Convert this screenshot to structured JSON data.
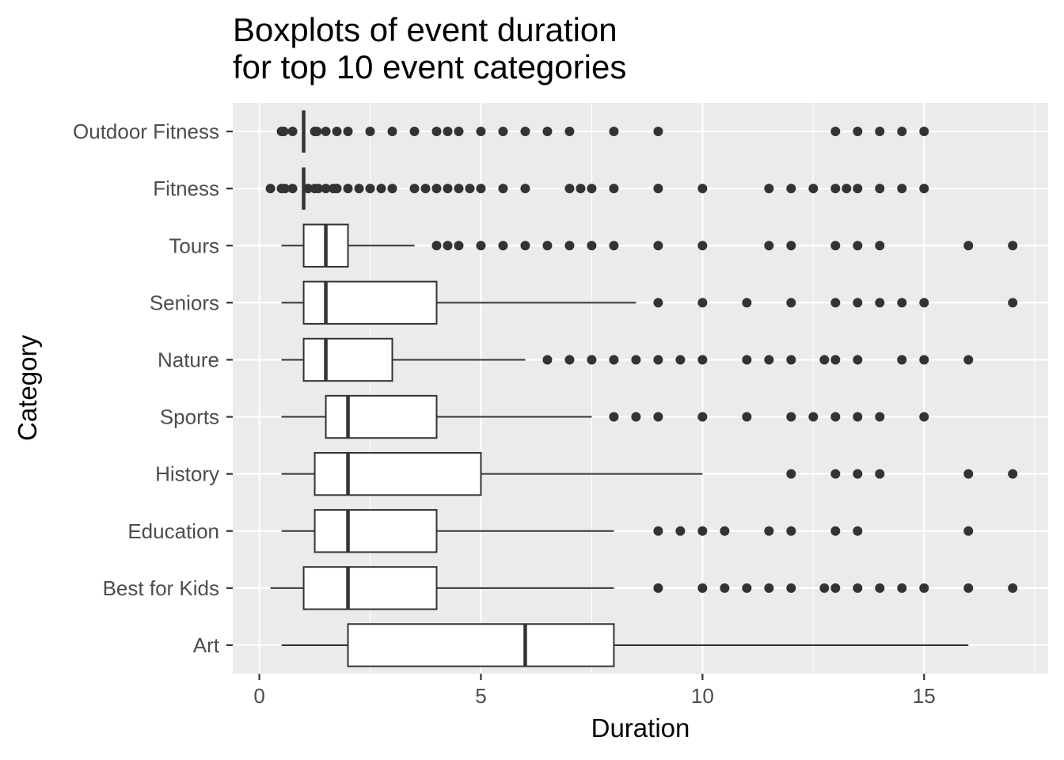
{
  "chart_data": {
    "type": "boxplot",
    "orientation": "horizontal",
    "title": [
      "Boxplots of event duration",
      "for top 10 event categories"
    ],
    "xlabel": "Duration",
    "ylabel": "Category",
    "xlim": [
      -0.6,
      17.8
    ],
    "x_ticks": [
      0,
      5,
      10,
      15
    ],
    "x_tick_labels": [
      "0",
      "5",
      "10",
      "15"
    ],
    "grid": true,
    "legend": "none",
    "colors": {
      "panel_background": "#ebebeb",
      "grid": "#ffffff",
      "box_fill": "#ffffff",
      "box_line": "#333333",
      "outlier": "#333333"
    },
    "categories": [
      "Outdoor Fitness",
      "Fitness",
      "Tours",
      "Seniors",
      "Nature",
      "Sports",
      "History",
      "Education",
      "Best for Kids",
      "Art"
    ],
    "boxes": [
      {
        "category": "Outdoor Fitness",
        "whisker_low": 1,
        "q1": 1,
        "median": 1,
        "q3": 1,
        "whisker_high": 1,
        "outliers": [
          0.5,
          0.55,
          0.75,
          1.25,
          1.3,
          1.5,
          1.75,
          2,
          2.5,
          3,
          3.5,
          4,
          4.25,
          4.5,
          5,
          5.5,
          6,
          6.5,
          7,
          8,
          9,
          13,
          13.5,
          14,
          14.5,
          15
        ]
      },
      {
        "category": "Fitness",
        "whisker_low": 1,
        "q1": 1,
        "median": 1,
        "q3": 1,
        "whisker_high": 1,
        "outliers": [
          0.25,
          0.5,
          0.58,
          0.75,
          1.1,
          1.25,
          1.33,
          1.5,
          1.67,
          1.75,
          2,
          2.25,
          2.5,
          2.75,
          3,
          3.5,
          3.75,
          4,
          4.25,
          4.5,
          4.75,
          5,
          5.5,
          6,
          7,
          7.25,
          7.5,
          8,
          9,
          10,
          11.5,
          12,
          12.5,
          13,
          13.25,
          13.5,
          14,
          14.5,
          15
        ]
      },
      {
        "category": "Tours",
        "whisker_low": 0.5,
        "q1": 1,
        "median": 1.5,
        "q3": 2,
        "whisker_high": 3.5,
        "outliers": [
          4,
          4.25,
          4.5,
          5,
          5.5,
          6,
          6.5,
          7,
          7.5,
          8,
          9,
          10,
          11.5,
          12,
          13,
          13.5,
          14,
          16,
          17
        ]
      },
      {
        "category": "Seniors",
        "whisker_low": 0.5,
        "q1": 1,
        "median": 1.5,
        "q3": 4,
        "whisker_high": 8.5,
        "outliers": [
          9,
          10,
          11,
          12,
          13,
          13.5,
          14,
          14.5,
          15,
          17
        ]
      },
      {
        "category": "Nature",
        "whisker_low": 0.5,
        "q1": 1,
        "median": 1.5,
        "q3": 3,
        "whisker_high": 6,
        "outliers": [
          6.5,
          7,
          7.5,
          8,
          8.5,
          9,
          9.5,
          10,
          11,
          11.5,
          12,
          12.75,
          13,
          13.5,
          14.5,
          15,
          16
        ]
      },
      {
        "category": "Sports",
        "whisker_low": 0.5,
        "q1": 1.5,
        "median": 2,
        "q3": 4,
        "whisker_high": 7.5,
        "outliers": [
          8,
          8.5,
          9,
          10,
          11,
          12,
          12.5,
          13,
          13.5,
          14,
          15
        ]
      },
      {
        "category": "History",
        "whisker_low": 0.5,
        "q1": 1.25,
        "median": 2,
        "q3": 5,
        "whisker_high": 10,
        "outliers": [
          12,
          13,
          13.5,
          14,
          16,
          17
        ]
      },
      {
        "category": "Education",
        "whisker_low": 0.5,
        "q1": 1.25,
        "median": 2,
        "q3": 4,
        "whisker_high": 8,
        "outliers": [
          9,
          9.5,
          10,
          10.5,
          11.5,
          12,
          13,
          13.5,
          16
        ]
      },
      {
        "category": "Best for Kids",
        "whisker_low": 0.25,
        "q1": 1,
        "median": 2,
        "q3": 4,
        "whisker_high": 8,
        "outliers": [
          9,
          10,
          10.5,
          11,
          11.5,
          12,
          12.75,
          13,
          13.5,
          14,
          14.5,
          15,
          16,
          17
        ]
      },
      {
        "category": "Art",
        "whisker_low": 0.5,
        "q1": 2,
        "median": 6,
        "q3": 8,
        "whisker_high": 16,
        "outliers": []
      }
    ]
  }
}
